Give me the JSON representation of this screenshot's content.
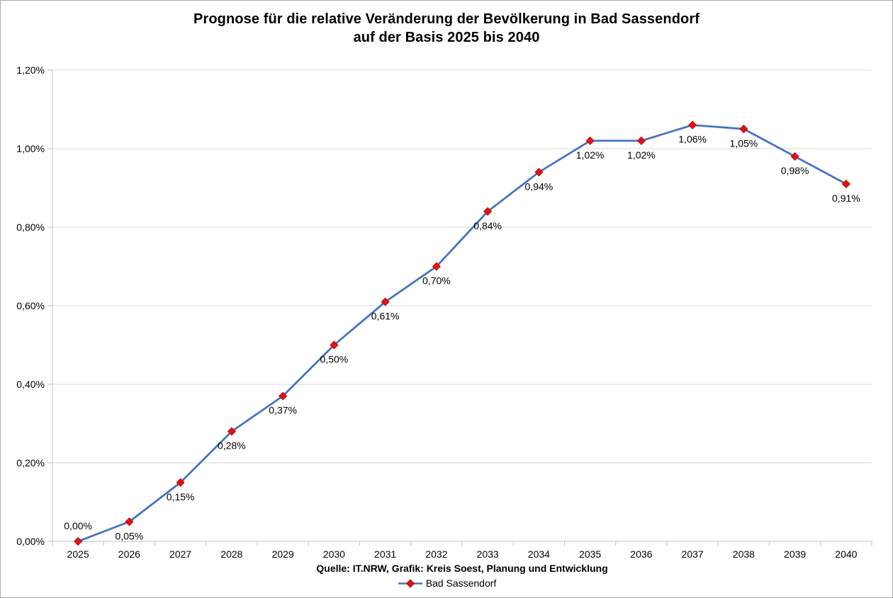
{
  "chart_data": {
    "type": "line",
    "title": "Prognose für die relative Veränderung der Bevölkerung in Bad Sassendorf auf der Basis 2025 bis 2040",
    "title_lines": [
      "Prognose für die relative Veränderung der Bevölkerung in Bad Sassendorf",
      "auf der Basis 2025 bis 2040"
    ],
    "categories": [
      "2025",
      "2026",
      "2027",
      "2028",
      "2029",
      "2030",
      "2031",
      "2032",
      "2033",
      "2034",
      "2035",
      "2036",
      "2037",
      "2038",
      "2039",
      "2040"
    ],
    "series": [
      {
        "name": "Bad Sassendorf",
        "values": [
          0.0,
          0.05,
          0.15,
          0.28,
          0.37,
          0.5,
          0.61,
          0.7,
          0.84,
          0.94,
          1.02,
          1.02,
          1.06,
          1.05,
          0.98,
          0.91
        ],
        "data_labels": [
          "0,00%",
          "0,05%",
          "0,15%",
          "0,28%",
          "0,37%",
          "0,50%",
          "0,61%",
          "0,70%",
          "0,84%",
          "0,94%",
          "1,02%",
          "1,02%",
          "1,06%",
          "1,05%",
          "0,98%",
          "0,91%"
        ],
        "line_color": "#4472C4",
        "marker_color": "#E01313",
        "marker_border_color": "#C00000",
        "marker_shape": "diamond"
      }
    ],
    "xlabel": "",
    "ylabel": "",
    "ylim": [
      0,
      1.2
    ],
    "y_tick_values": [
      0,
      0.2,
      0.4,
      0.6,
      0.8,
      1.0,
      1.2
    ],
    "y_tick_labels": [
      "0,00%",
      "0,20%",
      "0,40%",
      "0,60%",
      "0,80%",
      "1,00%",
      "1,20%"
    ],
    "grid": "horizontal",
    "legend_position": "bottom",
    "source_caption": "Quelle: IT.NRW, Grafik: Kreis Soest, Planung und Entwicklung",
    "colors": {
      "gridline": "#D9D9D9",
      "axis": "#BFBFBF",
      "text": "#000000",
      "background": "#FFFFFF"
    }
  }
}
